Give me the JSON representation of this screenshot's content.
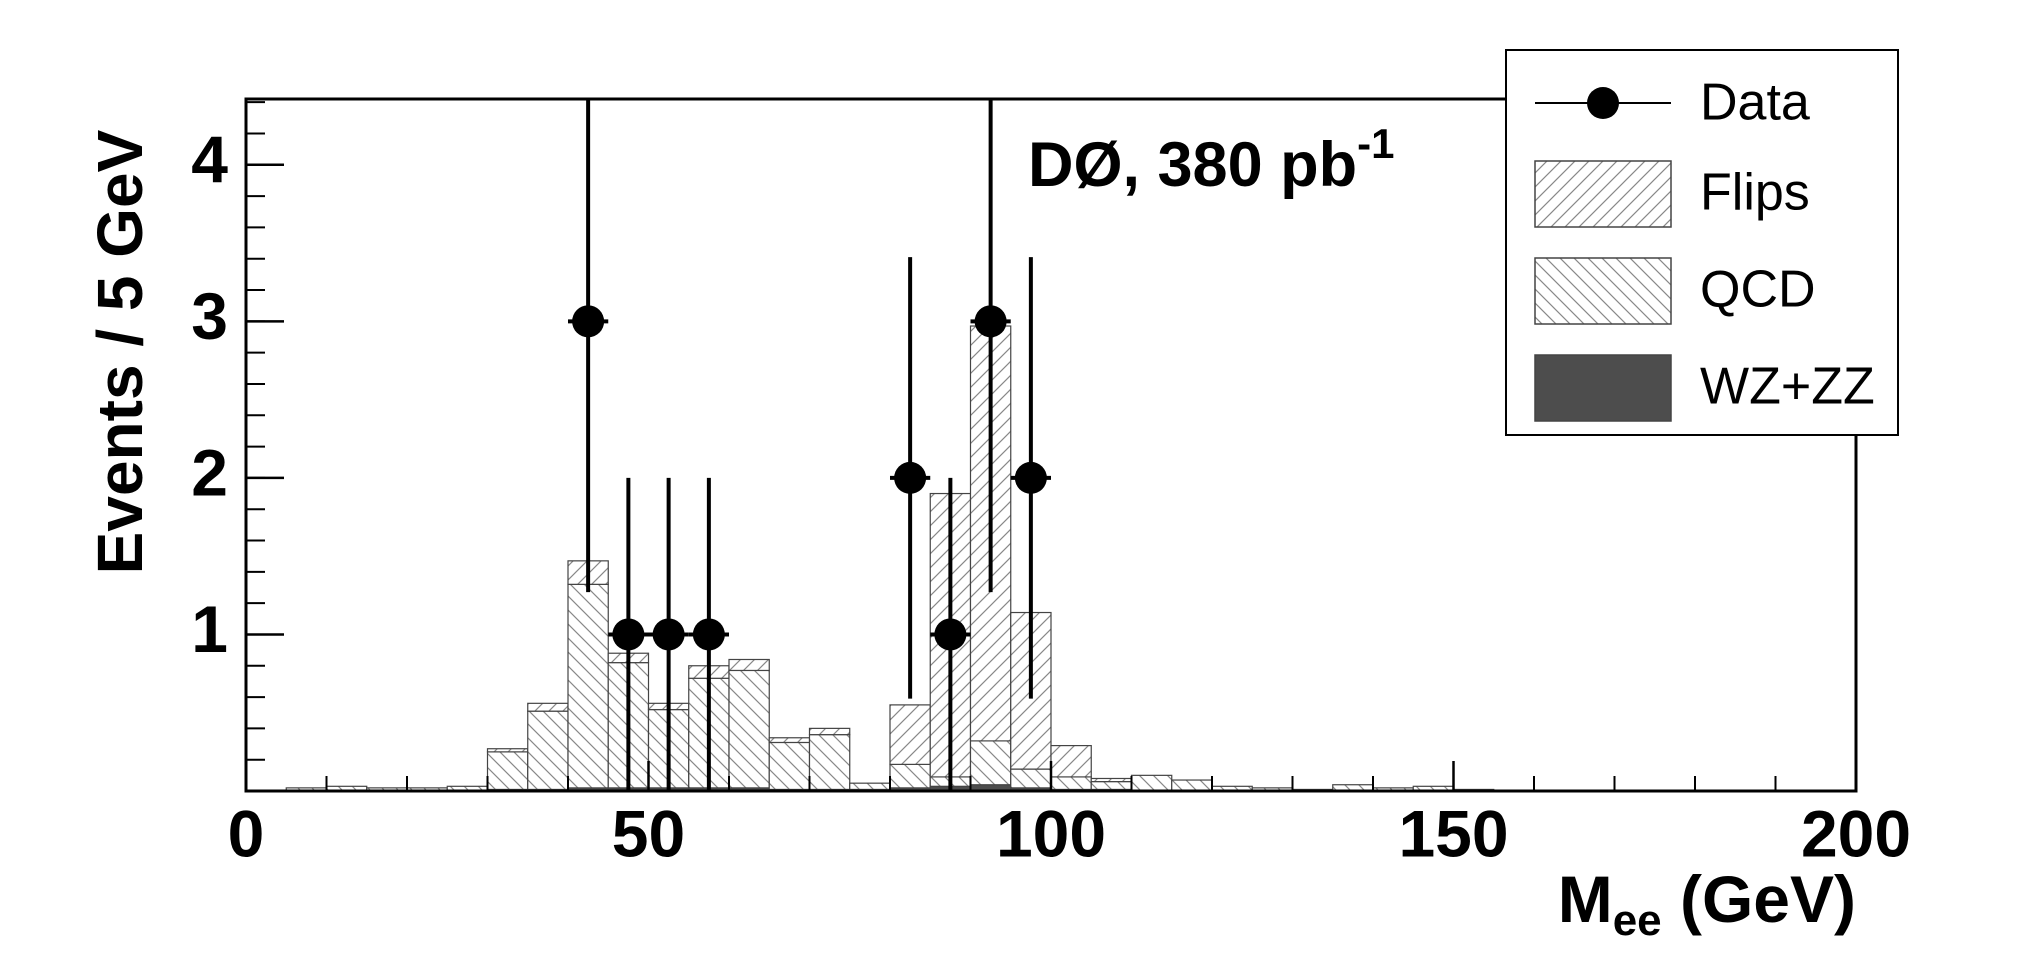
{
  "chart_data": {
    "type": "stacked_histogram",
    "annotation": {
      "text": "DØ, 380 pb",
      "superscript": "-1"
    },
    "x_label": {
      "main": "M",
      "sub": "ee",
      "rest": " (GeV)"
    },
    "y_label": "Events / 5 GeV",
    "bins": [
      0,
      5,
      10,
      15,
      20,
      25,
      30,
      35,
      40,
      45,
      50,
      55,
      60,
      65,
      70,
      75,
      80,
      85,
      90,
      95,
      100,
      105,
      110,
      115,
      120,
      125,
      130,
      135,
      140,
      145,
      150,
      155,
      160,
      165,
      170,
      175,
      180,
      185,
      190,
      195,
      200
    ],
    "series": [
      {
        "name": "Flips",
        "color": "#ffffff",
        "hatch": "/",
        "values": [
          0,
          0,
          0,
          0,
          0,
          0,
          0.02,
          0.05,
          0.15,
          0.06,
          0.04,
          0.08,
          0.07,
          0.03,
          0.04,
          0,
          0.38,
          1.81,
          2.65,
          1.0,
          0.2,
          0.02,
          0,
          0,
          0,
          0,
          0,
          0,
          0,
          0,
          0,
          0,
          0,
          0,
          0,
          0,
          0,
          0,
          0,
          0
        ]
      },
      {
        "name": "QCD",
        "color": "#ffffff",
        "hatch": "\\",
        "values": [
          0,
          0.02,
          0.03,
          0.02,
          0.02,
          0.03,
          0.24,
          0.5,
          1.3,
          0.8,
          0.5,
          0.7,
          0.75,
          0.3,
          0.35,
          0.04,
          0.15,
          0.06,
          0.28,
          0.12,
          0.08,
          0.05,
          0.1,
          0.07,
          0.03,
          0.02,
          0.01,
          0.04,
          0.02,
          0.03,
          0.01,
          0,
          0,
          0,
          0,
          0,
          0,
          0,
          0,
          0
        ]
      },
      {
        "name": "WZ+ZZ",
        "color": "#4d4d4d",
        "hatch": "none",
        "values": [
          0,
          0,
          0,
          0,
          0,
          0,
          0.01,
          0.01,
          0.02,
          0.02,
          0.02,
          0.02,
          0.02,
          0.01,
          0.01,
          0.01,
          0.02,
          0.03,
          0.04,
          0.02,
          0.01,
          0.01,
          0,
          0,
          0,
          0,
          0,
          0,
          0,
          0,
          0,
          0,
          0,
          0,
          0,
          0,
          0,
          0,
          0,
          0
        ]
      }
    ],
    "data": {
      "name": "Data",
      "color": "#000000",
      "x": [
        42.5,
        47.5,
        52.5,
        57.5,
        82.5,
        87.5,
        92.5,
        97.5
      ],
      "values": [
        3,
        1,
        1,
        1,
        2,
        1,
        3,
        2
      ],
      "errors": [
        1.73,
        1,
        1,
        1,
        1.41,
        1,
        1.73,
        1.41
      ]
    },
    "xlim": [
      0,
      200
    ],
    "ylim": [
      0,
      4.42
    ],
    "xticks": [
      0,
      50,
      100,
      150,
      200
    ],
    "yticks": [
      1,
      2,
      3,
      4
    ],
    "grid": false,
    "legend": "top-right"
  }
}
